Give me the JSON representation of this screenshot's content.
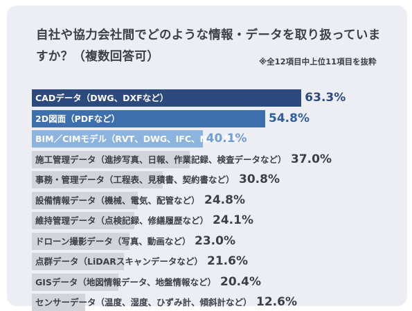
{
  "title": "自社や協力会社間でどのような情報・データを取り扱っていますか？（複数回答可）",
  "note": "※全12項目中上位11項目を抜粋",
  "chart_data": {
    "type": "bar",
    "orientation": "horizontal",
    "title": "自社や協力会社間でどのような情報・データを取り扱っていますか？（複数回答可）",
    "unit": "%",
    "categories": [
      "CADデータ（DWG、DXFなど）",
      "2D図面（PDFなど）",
      "BIM／CIMモデル（RVT、DWG、IFC、NWCなど）",
      "施工管理データ（進捗写真、日報、作業記録、検査データなど）",
      "事務・管理データ（工程表、見積書、契約書など）",
      "設備情報データ（機械、電気、配管など）",
      "維持管理データ（点検記録、修繕履歴など）",
      "ドローン撮影データ（写真、動画など）",
      "点群データ（LiDARスキャンデータなど）",
      "GISデータ（地図情報データ、地盤情報など）",
      "センサーデータ（温度、湿度、ひずみ計、傾斜計など）"
    ],
    "values": [
      63.3,
      54.8,
      40.1,
      37.0,
      30.8,
      24.8,
      24.1,
      23.0,
      21.6,
      20.4,
      12.6
    ],
    "value_labels": [
      "63.3%",
      "54.8%",
      "40.1%",
      "37.0%",
      "30.8%",
      "24.8%",
      "24.1%",
      "23.0%",
      "21.6%",
      "20.4%",
      "12.6%"
    ],
    "highlight_count": 3,
    "colors": {
      "top1": "#2c4a7e",
      "top2": "#3d6fae",
      "top3": "#8db4de",
      "rest": "#d2d4da",
      "text_highlight": "#ffffff",
      "text_rest": "#3a3f48",
      "value_top1": "#2c4a7e",
      "value_top2": "#2e5e9c",
      "value_top3": "#6f9dd3",
      "value_rest": "#3a3f48"
    }
  }
}
